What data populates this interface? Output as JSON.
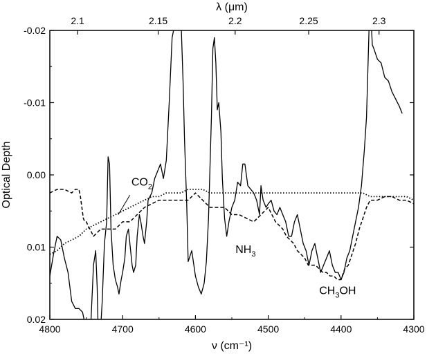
{
  "chart_data": {
    "type": "line",
    "xlabel": "ν (cm⁻¹)",
    "ylabel": "Optical Depth",
    "top_xlabel": "λ (μm)",
    "xlim": [
      4800,
      4300
    ],
    "ylim": [
      0.02,
      -0.02
    ],
    "x_ticks": [
      {
        "v": 4800,
        "label": "4800"
      },
      {
        "v": 4700,
        "label": "4700"
      },
      {
        "v": 4600,
        "label": "4600"
      },
      {
        "v": 4500,
        "label": "4500"
      },
      {
        "v": 4400,
        "label": "4400"
      },
      {
        "v": 4300,
        "label": "4300"
      }
    ],
    "y_ticks": [
      {
        "v": -0.02,
        "label": "-0.02"
      },
      {
        "v": -0.01,
        "label": "-0.01"
      },
      {
        "v": 0.0,
        "label": "0.00"
      },
      {
        "v": 0.01,
        "label": "0.01"
      },
      {
        "v": 0.02,
        "label": "0.02"
      }
    ],
    "top_ticks": [
      {
        "um": 2.1,
        "label": "2.1"
      },
      {
        "um": 2.15,
        "label": "2.15"
      },
      {
        "um": 2.2,
        "label": "2.2"
      },
      {
        "um": 2.25,
        "label": "2.25"
      },
      {
        "um": 2.3,
        "label": "2.3"
      }
    ],
    "annotations": [
      {
        "text": "CO2",
        "base": "CO",
        "sub": "2",
        "x": 4688,
        "y": 0.0015
      },
      {
        "text": "NH3",
        "base": "NH",
        "sub": "3",
        "x": 4545,
        "y": 0.0108
      },
      {
        "text": "CH3OH",
        "base": "CH",
        "sub": "3",
        "rest": "OH",
        "x": 4430,
        "y": 0.0165
      }
    ],
    "series": [
      {
        "style": "solid",
        "x": [
          4800,
          4795,
          4790,
          4785,
          4780,
          4775,
          4770,
          4765,
          4760,
          4755,
          4750,
          4745,
          4740,
          4737,
          4735,
          4733,
          4730,
          4728,
          4725,
          4722,
          4720,
          4718,
          4716,
          4713,
          4710,
          4707,
          4705,
          4702,
          4700,
          4697,
          4695,
          4692,
          4690,
          4687,
          4685,
          4682,
          4680,
          4677,
          4675,
          4672,
          4670,
          4667,
          4665,
          4660,
          4656,
          4652,
          4648,
          4644,
          4640,
          4636,
          4632,
          4628,
          4624,
          4620,
          4617,
          4615,
          4612,
          4610,
          4605,
          4600,
          4596,
          4592,
          4588,
          4585,
          4582,
          4578,
          4576,
          4574,
          4572,
          4570,
          4568,
          4565,
          4563,
          4560,
          4557,
          4554,
          4550,
          4546,
          4542,
          4538,
          4535,
          4532,
          4528,
          4524,
          4520,
          4516,
          4512,
          4510,
          4507,
          4503,
          4500,
          4496,
          4492,
          4488,
          4484,
          4480,
          4476,
          4472,
          4468,
          4464,
          4460,
          4456,
          4452,
          4448,
          4444,
          4440,
          4436,
          4432,
          4428,
          4424,
          4420,
          4416,
          4412,
          4408,
          4404,
          4400,
          4396,
          4392,
          4388,
          4384,
          4380,
          4376,
          4372,
          4368,
          4365,
          4363,
          4361,
          4359,
          4357,
          4355,
          4350,
          4345,
          4340,
          4335,
          4330,
          4325,
          4320,
          4316
        ],
        "y": [
          0.014,
          0.011,
          0.0085,
          0.009,
          0.0115,
          0.0135,
          0.0175,
          0.0185,
          0.0185,
          0.019,
          0.0215,
          0.0235,
          0.0125,
          0.0105,
          0.0155,
          0.0245,
          0.021,
          0.0175,
          0.0095,
          0.0065,
          -0.0025,
          -0.0015,
          0.0075,
          0.0125,
          0.0145,
          0.0155,
          0.0165,
          0.0145,
          0.0135,
          0.0115,
          0.0085,
          0.0075,
          0.0095,
          0.0125,
          0.0135,
          0.0125,
          0.0085,
          0.0055,
          0.0065,
          0.0085,
          0.0095,
          0.0065,
          0.0035,
          0.0025,
          0.0005,
          -0.0005,
          -0.0015,
          0.0005,
          -0.002,
          -0.01,
          -0.019,
          -0.021,
          -0.022,
          -0.022,
          -0.013,
          -0.005,
          0.004,
          0.012,
          0.0105,
          0.014,
          0.0155,
          0.0165,
          0.015,
          0.012,
          0.006,
          -0.008,
          -0.0175,
          -0.019,
          -0.0155,
          -0.009,
          -0.01,
          -0.006,
          0.0005,
          0.006,
          0.0085,
          0.0065,
          0.0045,
          0.0035,
          0.001,
          0.0015,
          -0.0015,
          -0.0015,
          0.0015,
          0.002,
          0.0025,
          0.0035,
          0.0055,
          0.0015,
          0.0035,
          0.0045,
          0.004,
          0.0035,
          0.005,
          0.0055,
          0.0045,
          0.0055,
          0.0065,
          0.0085,
          0.0085,
          0.0065,
          0.0055,
          0.0075,
          0.0095,
          0.0105,
          0.0125,
          0.0105,
          0.0095,
          0.0115,
          0.0135,
          0.0125,
          0.0115,
          0.0105,
          0.0125,
          0.0135,
          0.0135,
          0.0145,
          0.0135,
          0.0115,
          0.0105,
          0.0085,
          0.0065,
          0.0045,
          0.0015,
          -0.0035,
          -0.008,
          -0.015,
          -0.022,
          -0.022,
          -0.018,
          -0.0175,
          -0.016,
          -0.0155,
          -0.0135,
          -0.013,
          -0.0115,
          -0.0105,
          -0.0095,
          -0.0085
        ]
      },
      {
        "style": "dashed",
        "x": [
          4800,
          4790,
          4780,
          4770,
          4765,
          4760,
          4758,
          4756,
          4754,
          4752,
          4750,
          4745,
          4740,
          4730,
          4720,
          4710,
          4700,
          4690,
          4680,
          4670,
          4660,
          4650,
          4640,
          4630,
          4620,
          4610,
          4600,
          4590,
          4580,
          4570,
          4560,
          4550,
          4540,
          4530,
          4520,
          4510,
          4500,
          4495,
          4490,
          4485,
          4480,
          4475,
          4470,
          4465,
          4460,
          4455,
          4450,
          4445,
          4440,
          4435,
          4430,
          4425,
          4420,
          4415,
          4410,
          4405,
          4400,
          4395,
          4390,
          4385,
          4380,
          4375,
          4370,
          4365,
          4360,
          4350,
          4340,
          4330,
          4320,
          4310,
          4300
        ],
        "y": [
          0.0025,
          0.002,
          0.002,
          0.0025,
          0.002,
          0.002,
          0.003,
          0.0045,
          0.006,
          0.0065,
          0.0065,
          0.0075,
          0.0085,
          0.0075,
          0.0075,
          0.0075,
          0.0065,
          0.0065,
          0.0055,
          0.0045,
          0.004,
          0.0035,
          0.0035,
          0.0035,
          0.0035,
          0.0035,
          0.0025,
          0.0035,
          0.0045,
          0.0045,
          0.0045,
          0.0055,
          0.0055,
          0.006,
          0.0065,
          0.0055,
          0.0045,
          0.0055,
          0.0065,
          0.007,
          0.0075,
          0.0085,
          0.009,
          0.0095,
          0.0105,
          0.011,
          0.0115,
          0.0125,
          0.0125,
          0.0125,
          0.013,
          0.0135,
          0.0135,
          0.014,
          0.014,
          0.0145,
          0.0145,
          0.013,
          0.0125,
          0.011,
          0.0095,
          0.0075,
          0.006,
          0.0045,
          0.0035,
          0.0035,
          0.003,
          0.003,
          0.0035,
          0.0035,
          0.004
        ]
      },
      {
        "style": "dotted",
        "x": [
          4800,
          4790,
          4780,
          4770,
          4760,
          4750,
          4740,
          4730,
          4720,
          4710,
          4700,
          4690,
          4680,
          4670,
          4660,
          4650,
          4640,
          4630,
          4620,
          4610,
          4600,
          4590,
          4580,
          4570,
          4560,
          4550,
          4540,
          4530,
          4520,
          4510,
          4500,
          4490,
          4480,
          4470,
          4460,
          4450,
          4440,
          4430,
          4420,
          4410,
          4400,
          4390,
          4380,
          4370,
          4360,
          4350,
          4340,
          4330,
          4320,
          4310,
          4300
        ],
        "y": [
          0.011,
          0.0105,
          0.0095,
          0.009,
          0.0085,
          0.0075,
          0.007,
          0.0065,
          0.006,
          0.0055,
          0.005,
          0.0045,
          0.004,
          0.0035,
          0.003,
          0.003,
          0.0025,
          0.0025,
          0.0025,
          0.002,
          0.002,
          0.002,
          0.0025,
          0.0025,
          0.0025,
          0.0025,
          0.0025,
          0.0025,
          0.0025,
          0.0025,
          0.0025,
          0.0025,
          0.0025,
          0.0025,
          0.0025,
          0.0025,
          0.0025,
          0.0025,
          0.0025,
          0.0025,
          0.0025,
          0.0025,
          0.0025,
          0.0025,
          0.003,
          0.003,
          0.003,
          0.003,
          0.003,
          0.003,
          0.0035
        ]
      }
    ]
  }
}
